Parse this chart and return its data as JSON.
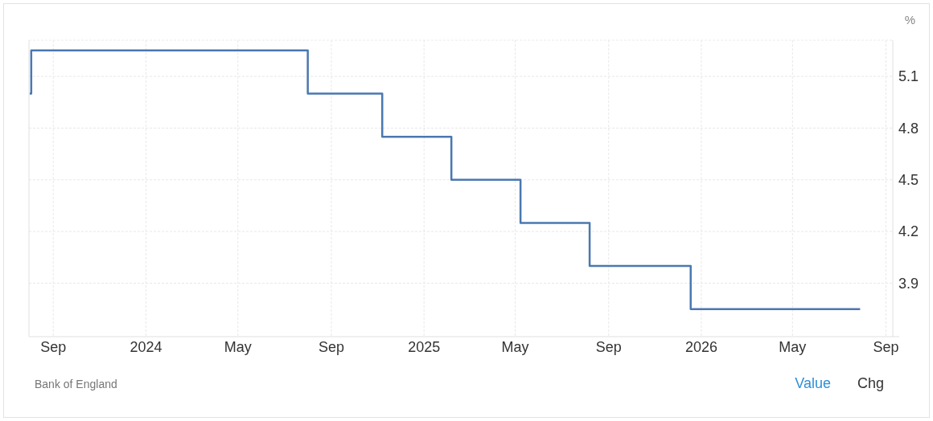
{
  "chart_data": {
    "type": "step",
    "ylabel": "%",
    "x": [
      "2023-08-01",
      "2023-08-03",
      "2024-08-01",
      "2024-11-07",
      "2025-02-06",
      "2025-05-08",
      "2025-08-07",
      "2025-12-18",
      "2026-07-29"
    ],
    "series": [
      {
        "color": "#4a78b0",
        "values": [
          5.0,
          5.25,
          5.0,
          4.75,
          4.5,
          4.25,
          4.0,
          3.75,
          3.75
        ]
      }
    ],
    "xlim": [
      "2023-07-31",
      "2026-09-10"
    ],
    "xticks": [
      {
        "value": "2023-09-01",
        "label": "Sep"
      },
      {
        "value": "2024-01-01",
        "label": "2024"
      },
      {
        "value": "2024-05-01",
        "label": "May"
      },
      {
        "value": "2024-09-01",
        "label": "Sep"
      },
      {
        "value": "2025-01-01",
        "label": "2025"
      },
      {
        "value": "2025-05-01",
        "label": "May"
      },
      {
        "value": "2025-09-01",
        "label": "Sep"
      },
      {
        "value": "2026-01-01",
        "label": "2026"
      },
      {
        "value": "2026-05-01",
        "label": "May"
      },
      {
        "value": "2026-09-01",
        "label": "Sep"
      }
    ],
    "ylim": [
      3.59,
      5.31
    ],
    "yticks": [
      3.9,
      4.2,
      4.5,
      4.8,
      5.1
    ],
    "grid": true,
    "annotations": [
      "Bank of England",
      "Value",
      "Chg"
    ]
  }
}
